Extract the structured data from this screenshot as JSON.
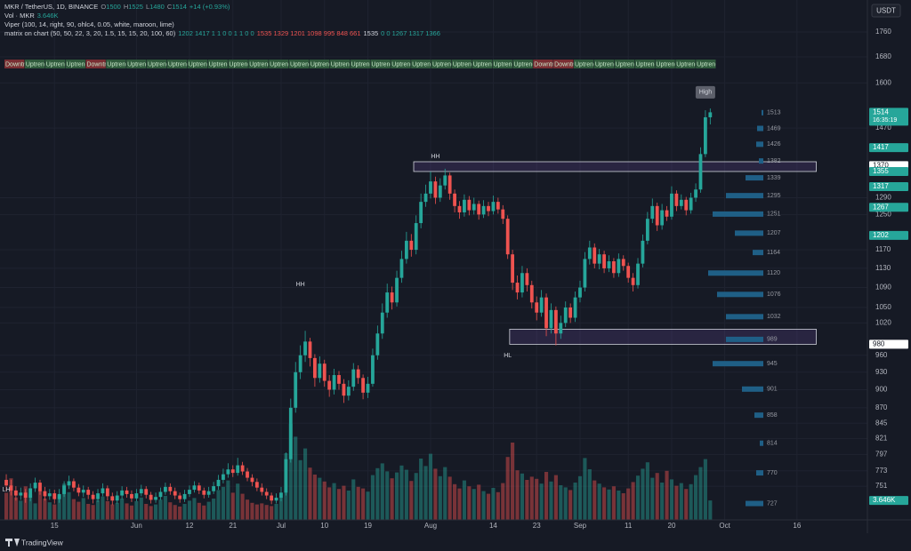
{
  "header": {
    "symbol": "MKR / TetherUS, 1D, BINANCE",
    "ohlc": [
      {
        "label": "O",
        "value": 1500
      },
      {
        "label": "H",
        "value": 1525
      },
      {
        "label": "L",
        "value": 1480
      },
      {
        "label": "C",
        "value": 1514
      }
    ],
    "change": "+14 (+0.93%)",
    "change_color": "#26a69a",
    "volume_title": "Vol · MKR",
    "indicators": [
      "Viper (100, 14, right, 90, ohlc4, 0.05, white, maroon, lime)",
      "matrix on chart (50, 50, 22, 3, 20, 1.5, 15, 15, 20, 100, 60)"
    ],
    "matrix_values": [
      {
        "text": "1202 1417 1 1 0 0 1 1 0 0",
        "color": "#26a69a"
      },
      {
        "text": "1535 1329 1201 1098 995 848 661",
        "color": "#ef5350"
      },
      {
        "text": "1535",
        "color": "#d1d4dc"
      },
      {
        "text": "0 0 1267 1317 1366",
        "color": "#26a69a"
      }
    ]
  },
  "currency": "USDT",
  "brand": "TradingView",
  "chart_data": {
    "type": "candlestick",
    "log_scale": true,
    "grid": true,
    "up_color": "#26a69a",
    "down_color": "#ef5350",
    "xlim": [
      -1.3,
      178.6
    ],
    "xticks": [
      {
        "value": 10,
        "label": "15"
      },
      {
        "value": 27,
        "label": "Jun"
      },
      {
        "value": 38,
        "label": "12"
      },
      {
        "value": 47,
        "label": "21"
      },
      {
        "value": 57,
        "label": "Jul"
      },
      {
        "value": 66,
        "label": "10"
      },
      {
        "value": 75,
        "label": "19"
      },
      {
        "value": 88,
        "label": "Aug"
      },
      {
        "value": 101,
        "label": "14"
      },
      {
        "value": 110,
        "label": "23"
      },
      {
        "value": 119,
        "label": "Sep"
      },
      {
        "value": 129,
        "label": "11"
      },
      {
        "value": 138,
        "label": "20"
      },
      {
        "value": 149,
        "label": "Oct"
      },
      {
        "value": 164,
        "label": "16"
      }
    ],
    "ylim": [
      705,
      1869
    ],
    "yticks": [
      1760,
      1680,
      1600,
      1470,
      1290,
      1250,
      1170,
      1130,
      1090,
      1050,
      1020,
      960,
      930,
      900,
      870,
      845,
      821,
      797,
      773,
      751
    ],
    "open": [
      760,
      752,
      745,
      738,
      742,
      735,
      748,
      756,
      744,
      737,
      741,
      733,
      740,
      752,
      758,
      749,
      742,
      746,
      739,
      733,
      741,
      748,
      737,
      731,
      738,
      745,
      740,
      734,
      741,
      747,
      739,
      732,
      736,
      743,
      750,
      744,
      738,
      733,
      740,
      746,
      752,
      745,
      739,
      744,
      751,
      760,
      768,
      775,
      770,
      781,
      772,
      763,
      757,
      749,
      743,
      738,
      731,
      735,
      742,
      790,
      870,
      930,
      960,
      985,
      955,
      920,
      945,
      915,
      900,
      925,
      910,
      890,
      905,
      935,
      920,
      895,
      910,
      960,
      1000,
      1040,
      1080,
      1060,
      1110,
      1150,
      1190,
      1170,
      1230,
      1280,
      1300,
      1330,
      1290,
      1320,
      1345,
      1300,
      1270,
      1255,
      1285,
      1260,
      1275,
      1250,
      1270,
      1258,
      1280,
      1262,
      1240,
      1160,
      1100,
      1080,
      1120,
      1095,
      1060,
      1040,
      1070,
      1010,
      1045,
      1000,
      1020,
      1050,
      1030,
      1070,
      1090,
      1150,
      1175,
      1140,
      1160,
      1130,
      1145,
      1120,
      1150,
      1135,
      1110,
      1095,
      1140,
      1190,
      1240,
      1270,
      1225,
      1260,
      1245,
      1300,
      1270,
      1285,
      1260,
      1290,
      1310,
      1400,
      1500
    ],
    "high": [
      768,
      760,
      751,
      749,
      747,
      755,
      763,
      760,
      750,
      747,
      746,
      747,
      758,
      766,
      762,
      754,
      752,
      750,
      744,
      747,
      755,
      752,
      742,
      744,
      751,
      750,
      745,
      747,
      753,
      751,
      743,
      742,
      749,
      756,
      755,
      749,
      742,
      746,
      752,
      758,
      756,
      749,
      750,
      757,
      767,
      776,
      784,
      781,
      792,
      786,
      777,
      768,
      762,
      755,
      748,
      742,
      741,
      750,
      800,
      885,
      948,
      978,
      1005,
      992,
      962,
      958,
      952,
      925,
      936,
      932,
      918,
      916,
      946,
      942,
      926,
      922,
      972,
      1015,
      1058,
      1098,
      1092,
      1125,
      1168,
      1210,
      1205,
      1248,
      1300,
      1322,
      1355,
      1342,
      1338,
      1362,
      1352,
      1310,
      1282,
      1298,
      1294,
      1290,
      1283,
      1284,
      1280,
      1295,
      1290,
      1272,
      1248,
      1170,
      1115,
      1135,
      1130,
      1104,
      1072,
      1085,
      1078,
      1058,
      1052,
      1034,
      1062,
      1058,
      1082,
      1104,
      1165,
      1190,
      1184,
      1172,
      1168,
      1158,
      1152,
      1162,
      1158,
      1142,
      1120,
      1152,
      1204,
      1256,
      1288,
      1278,
      1275,
      1270,
      1318,
      1308,
      1298,
      1292,
      1302,
      1325,
      1418,
      1520,
      1525
    ],
    "low": [
      744,
      738,
      731,
      732,
      728,
      730,
      743,
      739,
      731,
      732,
      727,
      728,
      736,
      747,
      744,
      737,
      736,
      733,
      727,
      729,
      737,
      731,
      725,
      727,
      733,
      735,
      729,
      730,
      737,
      734,
      727,
      728,
      732,
      739,
      739,
      733,
      728,
      729,
      736,
      742,
      740,
      734,
      735,
      740,
      746,
      755,
      763,
      764,
      766,
      767,
      758,
      751,
      744,
      738,
      733,
      726,
      727,
      730,
      738,
      785,
      862,
      918,
      948,
      940,
      905,
      912,
      905,
      888,
      892,
      900,
      878,
      882,
      898,
      910,
      884,
      886,
      905,
      952,
      990,
      1030,
      1046,
      1052,
      1100,
      1140,
      1155,
      1160,
      1218,
      1268,
      1288,
      1275,
      1280,
      1310,
      1285,
      1255,
      1240,
      1245,
      1248,
      1250,
      1238,
      1242,
      1246,
      1250,
      1252,
      1228,
      1150,
      1085,
      1066,
      1070,
      1082,
      1048,
      1025,
      1032,
      995,
      1000,
      978,
      990,
      1012,
      1020,
      1022,
      1060,
      1082,
      1138,
      1130,
      1128,
      1120,
      1122,
      1110,
      1112,
      1125,
      1100,
      1082,
      1088,
      1132,
      1182,
      1230,
      1212,
      1215,
      1235,
      1238,
      1258,
      1262,
      1248,
      1252,
      1280,
      1302,
      1392,
      1480
    ],
    "close": [
      752,
      745,
      738,
      742,
      735,
      748,
      756,
      744,
      737,
      741,
      733,
      740,
      752,
      758,
      749,
      742,
      746,
      739,
      733,
      741,
      748,
      737,
      731,
      738,
      745,
      740,
      734,
      741,
      747,
      739,
      732,
      736,
      743,
      750,
      744,
      738,
      733,
      740,
      746,
      752,
      745,
      739,
      744,
      751,
      760,
      768,
      775,
      770,
      781,
      772,
      763,
      757,
      749,
      743,
      738,
      731,
      735,
      742,
      790,
      870,
      930,
      960,
      985,
      955,
      920,
      945,
      915,
      900,
      925,
      910,
      890,
      905,
      935,
      920,
      895,
      910,
      960,
      1000,
      1040,
      1080,
      1060,
      1110,
      1150,
      1190,
      1170,
      1230,
      1280,
      1300,
      1330,
      1290,
      1320,
      1345,
      1300,
      1270,
      1255,
      1285,
      1260,
      1275,
      1250,
      1270,
      1258,
      1280,
      1262,
      1240,
      1160,
      1100,
      1080,
      1120,
      1095,
      1060,
      1040,
      1070,
      1010,
      1045,
      1000,
      1020,
      1050,
      1030,
      1070,
      1090,
      1150,
      1175,
      1140,
      1160,
      1130,
      1145,
      1120,
      1150,
      1135,
      1110,
      1095,
      1140,
      1190,
      1240,
      1270,
      1225,
      1260,
      1245,
      1300,
      1270,
      1285,
      1260,
      1290,
      1310,
      1400,
      1500,
      1514
    ],
    "volume": [
      5.1,
      7.8,
      4.2,
      3.6,
      6.3,
      4.8,
      3.1,
      5.5,
      4.0,
      3.3,
      2.9,
      4.6,
      6.8,
      5.2,
      3.9,
      3.4,
      4.1,
      3.0,
      2.8,
      3.7,
      4.4,
      3.5,
      2.9,
      3.2,
      4.0,
      3.1,
      2.7,
      3.5,
      4.2,
      3.0,
      2.6,
      2.9,
      3.8,
      4.5,
      3.3,
      2.8,
      2.5,
      3.0,
      3.6,
      4.1,
      3.2,
      2.7,
      3.4,
      4.0,
      5.6,
      6.2,
      7.4,
      5.1,
      6.8,
      4.9,
      3.8,
      3.2,
      2.9,
      3.1,
      2.8,
      2.6,
      3.0,
      4.2,
      12.5,
      18.0,
      15.6,
      11.2,
      13.4,
      9.8,
      8.5,
      7.9,
      7.2,
      6.1,
      6.9,
      5.8,
      6.4,
      5.5,
      7.6,
      6.2,
      5.9,
      5.3,
      8.4,
      9.7,
      10.6,
      9.1,
      7.8,
      8.9,
      10.2,
      9.4,
      7.3,
      8.8,
      11.5,
      10.1,
      12.4,
      9.6,
      8.2,
      9.9,
      8.1,
      6.7,
      5.9,
      7.4,
      6.3,
      5.8,
      6.6,
      5.4,
      4.9,
      6.0,
      5.2,
      6.9,
      11.8,
      14.5,
      9.3,
      8.7,
      7.5,
      8.1,
      7.7,
      6.8,
      9.0,
      7.2,
      8.4,
      6.5,
      6.1,
      5.6,
      7.0,
      8.2,
      11.6,
      9.5,
      7.4,
      6.8,
      6.1,
      5.7,
      6.3,
      5.5,
      5.0,
      5.9,
      7.1,
      8.3,
      9.6,
      10.8,
      7.9,
      8.8,
      7.0,
      9.2,
      7.6,
      6.4,
      6.9,
      5.8,
      6.7,
      8.4,
      9.9,
      11.4,
      3.646
    ],
    "volume_lim": [
      0,
      20
    ],
    "volume_label": {
      "value": 3.646,
      "label": "3.646K"
    },
    "price_labels": [
      {
        "value": 1514,
        "color": "#26a69a",
        "text_color": "#ffffff",
        "sub": "16:35:19"
      },
      {
        "value": 1417,
        "color": "#26a69a",
        "text_color": "#ffffff"
      },
      {
        "value": 1370,
        "color": "#ffffff",
        "text_color": "#131722"
      },
      {
        "value": 1355,
        "color": "#26a69a",
        "text_color": "#ffffff"
      },
      {
        "value": 1317,
        "color": "#26a69a",
        "text_color": "#ffffff"
      },
      {
        "value": 1267,
        "color": "#26a69a",
        "text_color": "#ffffff"
      },
      {
        "value": 1202,
        "color": "#26a69a",
        "text_color": "#ffffff"
      },
      {
        "value": 980,
        "color": "#ffffff",
        "text_color": "#131722"
      }
    ],
    "zones": [
      {
        "x": [
          84.5,
          168
        ],
        "y": [
          1355,
          1380
        ]
      },
      {
        "x": [
          104.4,
          168
        ],
        "y": [
          980,
          1008
        ]
      }
    ],
    "annotations": [
      {
        "text": "HH",
        "x": 89,
        "y": 1394
      },
      {
        "text": "HH",
        "x": 61,
        "y": 1096
      },
      {
        "text": "HL",
        "x": 104,
        "y": 959
      },
      {
        "text": "LH",
        "x": 0,
        "y": 746
      },
      {
        "text": "High",
        "x": 145,
        "y": 1572
      }
    ],
    "volume_profile": {
      "levels": [
        1513,
        1469,
        1426,
        1382,
        1339,
        1295,
        1251,
        1207,
        1164,
        1120,
        1076,
        1032,
        989,
        945,
        901,
        858,
        814,
        770,
        727
      ],
      "values": [
        2,
        7,
        8,
        5,
        20,
        42,
        57,
        32,
        12,
        62,
        52,
        42,
        42,
        57,
        24,
        10,
        4,
        8,
        20
      ],
      "xlim": [
        0,
        100
      ],
      "color": "#1f5f86"
    },
    "trend_strip": [
      {
        "label": "Downtrend",
        "color": "#7a2e33"
      },
      {
        "label": "Uptrend",
        "color": "#2f5a3c"
      },
      {
        "label": "Uptrend",
        "color": "#2f5a3c"
      },
      {
        "label": "Uptrend",
        "color": "#2f5a3c"
      },
      {
        "label": "Downtrend",
        "color": "#7a2e33"
      },
      {
        "label": "Uptrend",
        "color": "#2f5a3c"
      },
      {
        "label": "Uptrend",
        "color": "#2f5a3c"
      },
      {
        "label": "Uptrend",
        "color": "#2f5a3c"
      },
      {
        "label": "Uptrend",
        "color": "#2f5a3c"
      },
      {
        "label": "Uptrend",
        "color": "#2f5a3c"
      },
      {
        "label": "Uptrend",
        "color": "#2f5a3c"
      },
      {
        "label": "Uptrend",
        "color": "#2f5a3c"
      },
      {
        "label": "Uptrend",
        "color": "#2f5a3c"
      },
      {
        "label": "Uptrend",
        "color": "#2f5a3c"
      },
      {
        "label": "Uptrend",
        "color": "#2f5a3c"
      },
      {
        "label": "Uptrend",
        "color": "#2f5a3c"
      },
      {
        "label": "Uptrend",
        "color": "#2f5a3c"
      },
      {
        "label": "Uptrend",
        "color": "#2f5a3c"
      },
      {
        "label": "Uptrend",
        "color": "#2f5a3c"
      },
      {
        "label": "Uptrend",
        "color": "#2f5a3c"
      },
      {
        "label": "Uptrend",
        "color": "#2f5a3c"
      },
      {
        "label": "Uptrend",
        "color": "#2f5a3c"
      },
      {
        "label": "Uptrend",
        "color": "#2f5a3c"
      },
      {
        "label": "Uptrend",
        "color": "#2f5a3c"
      },
      {
        "label": "Uptrend",
        "color": "#2f5a3c"
      },
      {
        "label": "Uptrend",
        "color": "#2f5a3c"
      },
      {
        "label": "Downtrend",
        "color": "#7a2e33"
      },
      {
        "label": "Downtrend",
        "color": "#7a2e33"
      },
      {
        "label": "Uptrend",
        "color": "#2f5a3c"
      },
      {
        "label": "Uptrend",
        "color": "#2f5a3c"
      },
      {
        "label": "Uptrend",
        "color": "#2f5a3c"
      },
      {
        "label": "Uptrend",
        "color": "#2f5a3c"
      },
      {
        "label": "Uptrend",
        "color": "#2f5a3c"
      },
      {
        "label": "Uptrend",
        "color": "#2f5a3c"
      },
      {
        "label": "Uptrend",
        "color": "#2f5a3c"
      }
    ]
  }
}
